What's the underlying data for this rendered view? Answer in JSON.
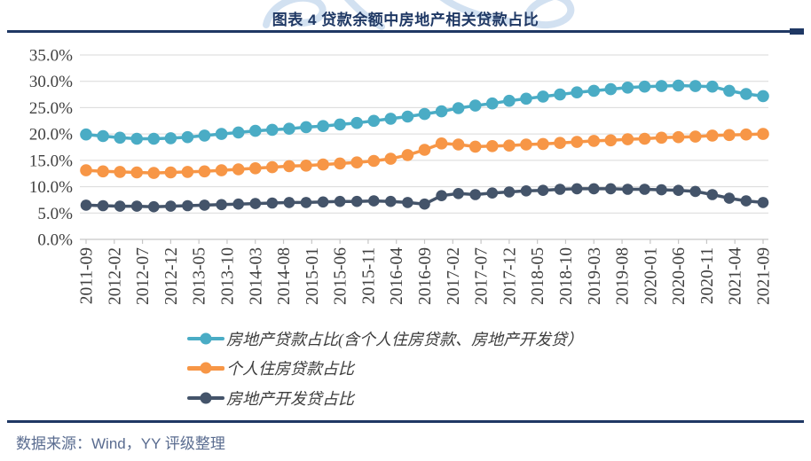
{
  "title": "图表 4 贷款余额中房地产相关贷款占比",
  "source_note": "数据来源：Wind，YY 评级整理",
  "colors": {
    "title": "#1F3864",
    "rule": "#1F3864",
    "source_text": "#5A6C90",
    "grid": "#D9D9D9",
    "axis_line": "#C6C6C6",
    "axis_text": "#404040",
    "watermark": "#CBDCEF",
    "series_teal": "#4AACC5",
    "series_orange": "#F79646",
    "series_navy": "#44546A"
  },
  "chart_data": {
    "type": "line",
    "title": "图表 4 贷款余额中房地产相关贷款占比",
    "ylabel": "",
    "xlabel": "",
    "ylim": [
      0,
      35
    ],
    "grid": "horizontal",
    "legend_position": "bottom-left",
    "y_tick_labels": [
      "0.0%",
      "5.0%",
      "10.0%",
      "15.0%",
      "20.0%",
      "25.0%",
      "30.0%",
      "35.0%"
    ],
    "x_tick_labels": [
      "2011-09",
      "2012-02",
      "2012-07",
      "2012-12",
      "2013-05",
      "2013-10",
      "2014-03",
      "2014-08",
      "2015-01",
      "2015-06",
      "2015-11",
      "2016-04",
      "2016-09",
      "2017-02",
      "2017-07",
      "2017-12",
      "2018-05",
      "2018-10",
      "2019-03",
      "2019-08",
      "2020-01",
      "2020-06",
      "2020-11",
      "2021-04",
      "2021-09"
    ],
    "x_frequency": "quarterly",
    "x": [
      "2011-09",
      "2011-12",
      "2012-03",
      "2012-06",
      "2012-09",
      "2012-12",
      "2013-03",
      "2013-06",
      "2013-09",
      "2013-12",
      "2014-03",
      "2014-06",
      "2014-09",
      "2014-12",
      "2015-03",
      "2015-06",
      "2015-09",
      "2015-12",
      "2016-03",
      "2016-06",
      "2016-09",
      "2016-12",
      "2017-03",
      "2017-06",
      "2017-09",
      "2017-12",
      "2018-03",
      "2018-06",
      "2018-09",
      "2018-12",
      "2019-03",
      "2019-06",
      "2019-09",
      "2019-12",
      "2020-03",
      "2020-06",
      "2020-09",
      "2020-12",
      "2021-03",
      "2021-06",
      "2021-09"
    ],
    "series": [
      {
        "name": "房地产贷款占比(含个人住房贷款、房地产开发贷）",
        "color": "#4AACC5",
        "values": [
          19.9,
          19.6,
          19.3,
          19.1,
          19.1,
          19.2,
          19.4,
          19.7,
          20.0,
          20.3,
          20.6,
          20.8,
          21.0,
          21.3,
          21.5,
          21.8,
          22.1,
          22.5,
          22.9,
          23.3,
          23.8,
          24.3,
          24.9,
          25.4,
          25.8,
          26.3,
          26.7,
          27.1,
          27.5,
          27.9,
          28.2,
          28.5,
          28.8,
          29.0,
          29.1,
          29.2,
          29.1,
          29.0,
          28.2,
          27.6,
          27.2
        ]
      },
      {
        "name": "个人住房贷款占比",
        "color": "#F79646",
        "values": [
          13.1,
          12.9,
          12.8,
          12.7,
          12.6,
          12.7,
          12.8,
          12.9,
          13.1,
          13.3,
          13.5,
          13.7,
          13.9,
          14.0,
          14.2,
          14.4,
          14.6,
          14.9,
          15.3,
          16.0,
          17.0,
          18.2,
          18.0,
          17.6,
          17.7,
          17.8,
          18.0,
          18.1,
          18.3,
          18.5,
          18.7,
          18.8,
          19.0,
          19.1,
          19.3,
          19.4,
          19.5,
          19.7,
          19.8,
          19.9,
          20.0
        ]
      },
      {
        "name": "房地产开发贷占比",
        "color": "#44546A",
        "values": [
          6.5,
          6.4,
          6.3,
          6.3,
          6.2,
          6.3,
          6.4,
          6.5,
          6.6,
          6.7,
          6.8,
          6.9,
          7.0,
          7.0,
          7.1,
          7.2,
          7.2,
          7.3,
          7.2,
          7.0,
          6.7,
          8.3,
          8.7,
          8.5,
          8.8,
          9.0,
          9.2,
          9.3,
          9.5,
          9.6,
          9.6,
          9.6,
          9.5,
          9.5,
          9.4,
          9.3,
          9.1,
          8.5,
          7.8,
          7.3,
          7.0
        ]
      }
    ]
  }
}
